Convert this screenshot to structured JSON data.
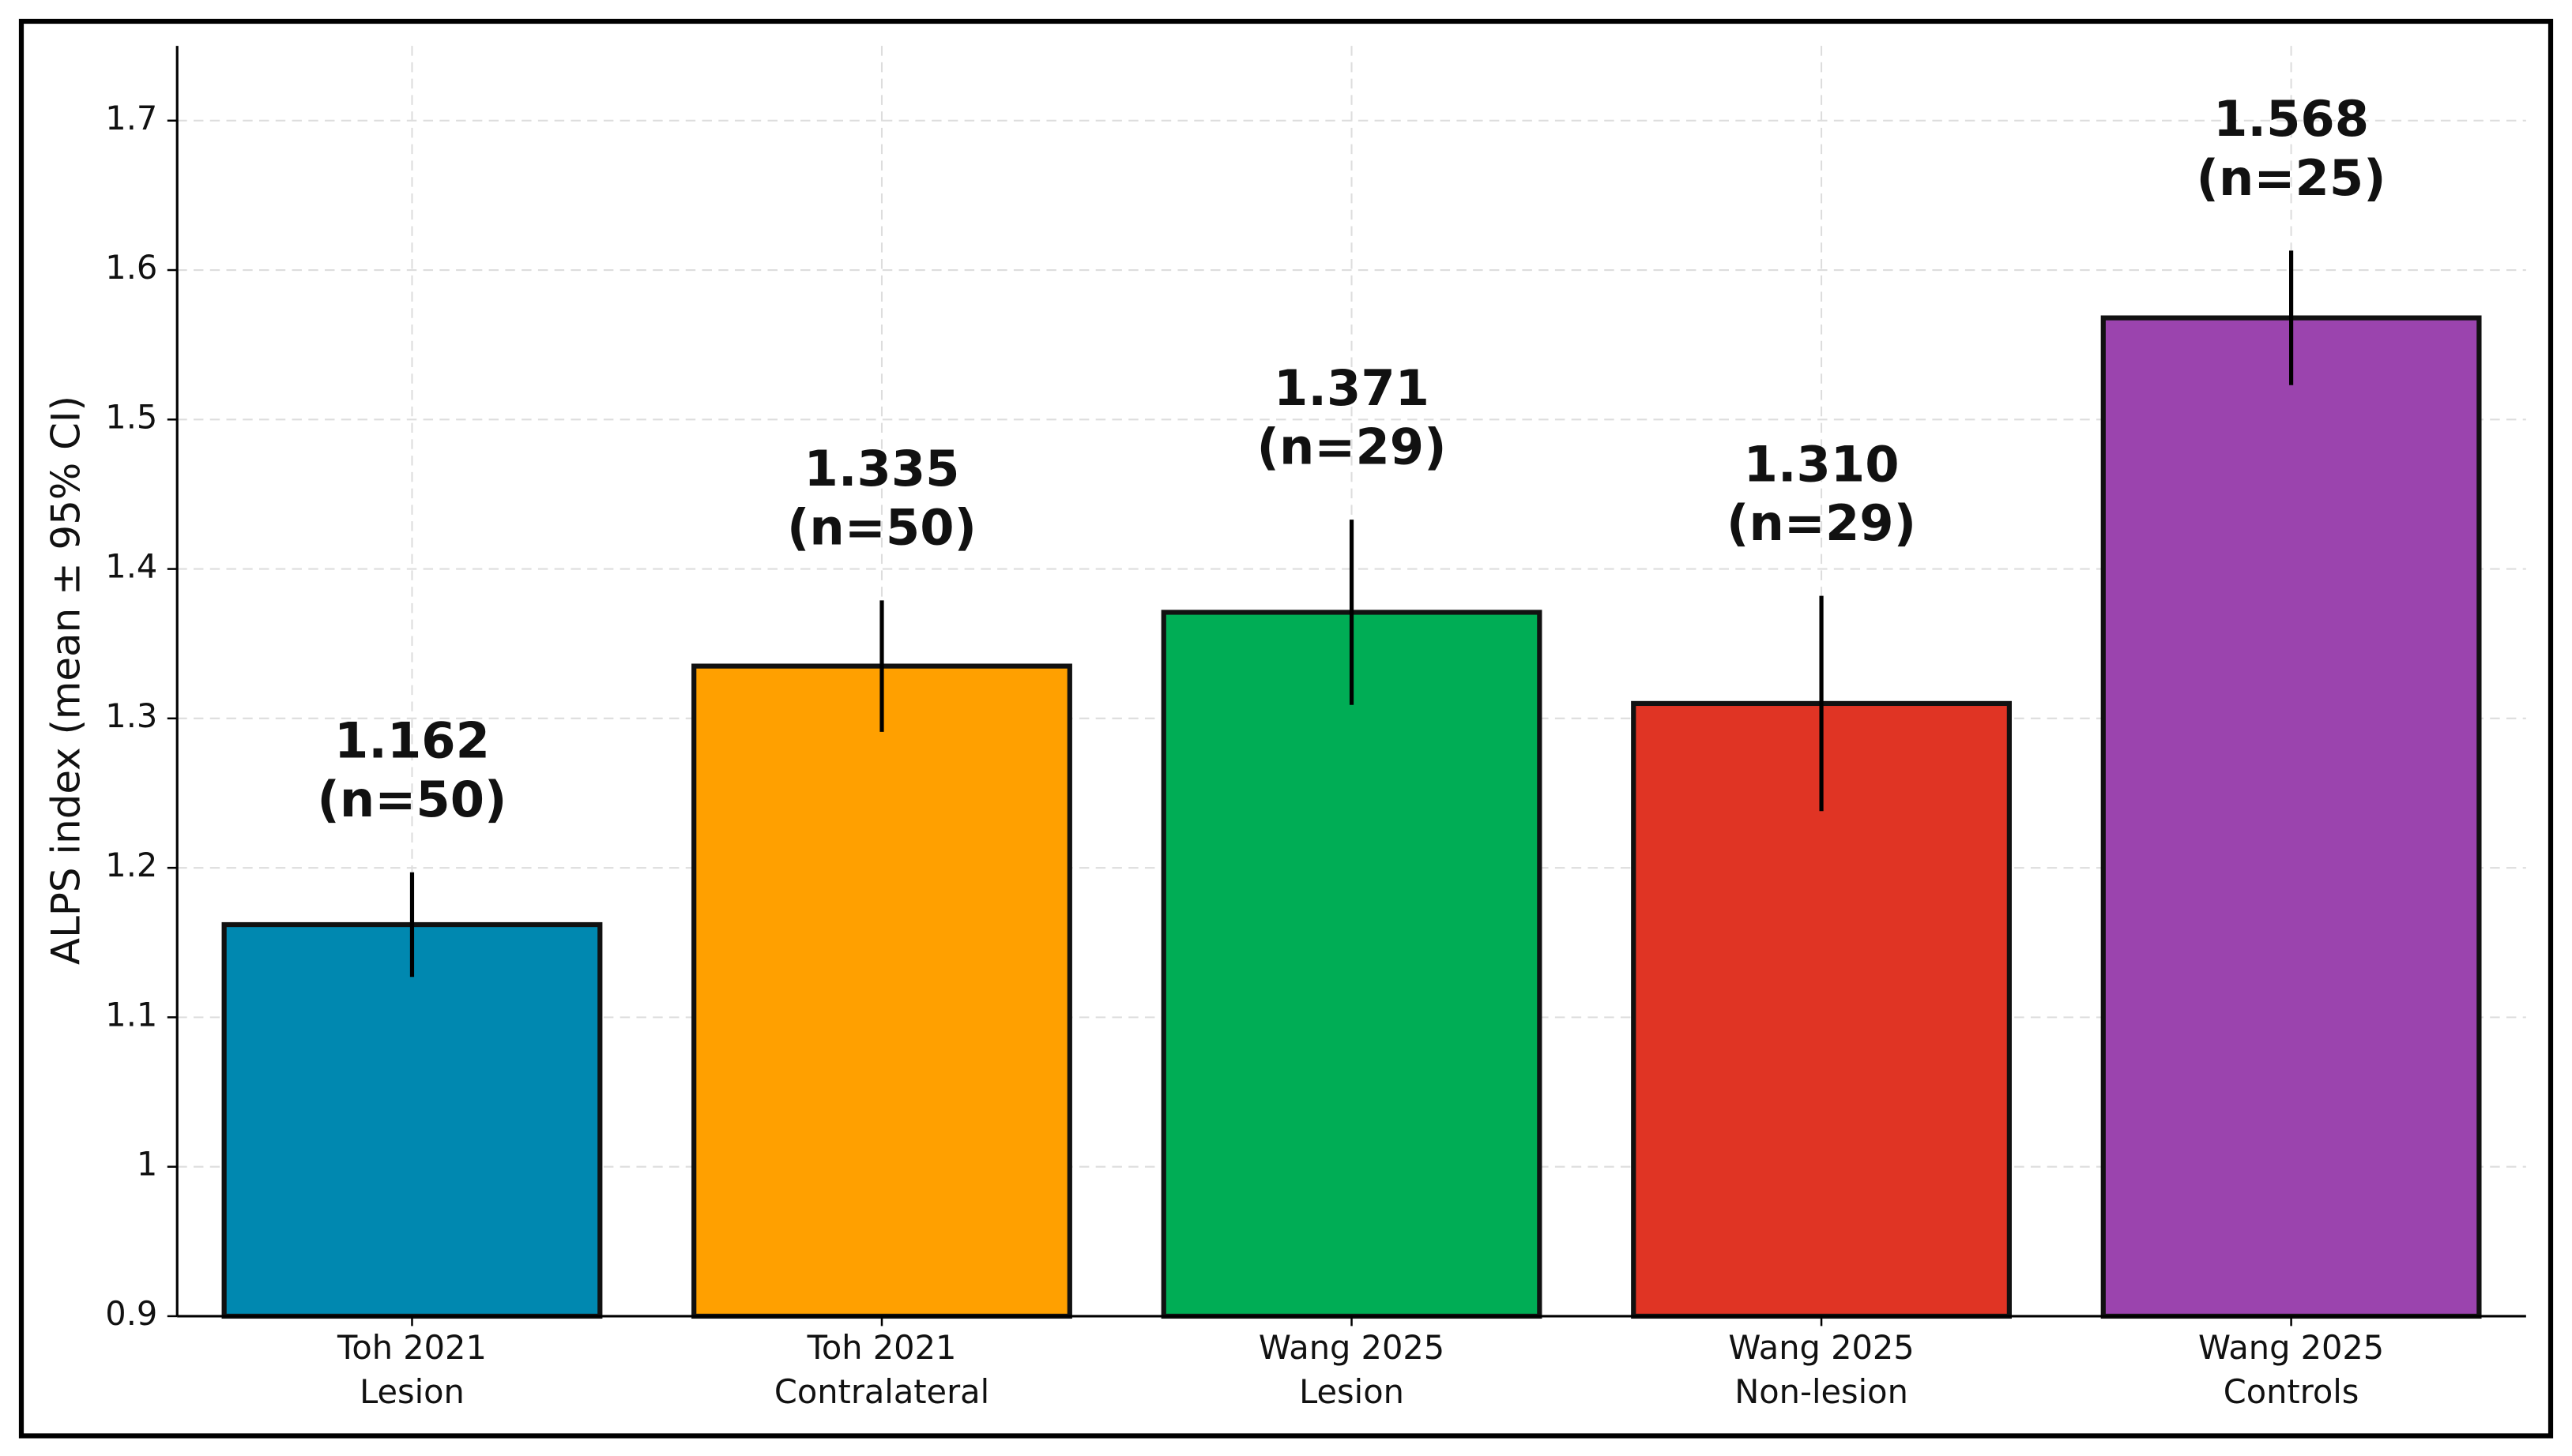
{
  "chart_data": {
    "type": "bar",
    "ylabel": "ALPS index (mean ± 95% CI)",
    "categories": [
      [
        "Toh 2021",
        "Lesion"
      ],
      [
        "Toh 2021",
        "Contralateral"
      ],
      [
        "Wang 2025",
        "Lesion"
      ],
      [
        "Wang 2025",
        "Non-lesion"
      ],
      [
        "Wang 2025",
        "Controls"
      ]
    ],
    "values": [
      1.162,
      1.335,
      1.371,
      1.31,
      1.568
    ],
    "value_labels": [
      "1.162",
      "1.335",
      "1.371",
      "1.310",
      "1.568"
    ],
    "n_labels": [
      "(n=50)",
      "(n=50)",
      "(n=29)",
      "(n=29)",
      "(n=25)"
    ],
    "errors": [
      0.035,
      0.044,
      0.062,
      0.072,
      0.045
    ],
    "colors": [
      "#0088b0",
      "#ffa000",
      "#00ad55",
      "#e03424",
      "#9b44ae"
    ],
    "ylim": [
      0.9,
      1.75
    ],
    "yticks": [
      0.9,
      1.0,
      1.1,
      1.2,
      1.3,
      1.4,
      1.5,
      1.6,
      1.7
    ],
    "grid": true
  }
}
